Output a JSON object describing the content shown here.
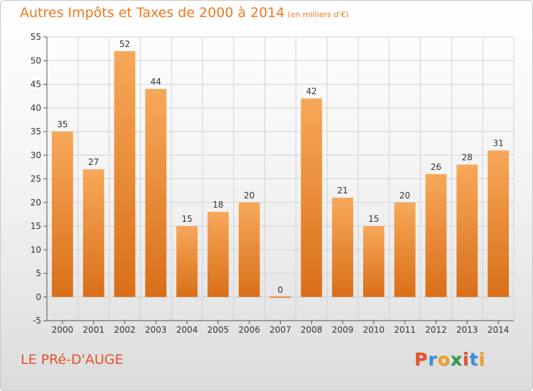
{
  "header": {
    "title": "Autres Impôts et Taxes de 2000 à 2014",
    "subtitle": "(en milliers d'€)"
  },
  "footer": {
    "location": "LE PRé-D'AUGE",
    "logo_letters": [
      "P",
      "r",
      "o",
      "x",
      "i",
      "t",
      "i"
    ]
  },
  "colors": {
    "title": "#f0781e",
    "location": "#e8512a",
    "bar_light": "#f7a85a",
    "bar_dark": "#d96f18",
    "logo": [
      "#e8512a",
      "#3a8fd6",
      "#f0a020",
      "#2e9b4a",
      "#e8512a",
      "#3a8fd6",
      "#f0a020"
    ]
  },
  "chart_data": {
    "type": "bar",
    "title": "Autres Impôts et Taxes de 2000 à 2014",
    "subtitle": "(en milliers d'€)",
    "categories": [
      "2000",
      "2001",
      "2002",
      "2003",
      "2004",
      "2005",
      "2006",
      "2007",
      "2008",
      "2009",
      "2010",
      "2011",
      "2012",
      "2013",
      "2014"
    ],
    "values": [
      35,
      27,
      52,
      44,
      15,
      18,
      20,
      0,
      42,
      21,
      15,
      20,
      26,
      28,
      31
    ],
    "ylim": [
      -5,
      55
    ],
    "yticks": [
      -5,
      0,
      5,
      10,
      15,
      20,
      25,
      30,
      35,
      40,
      45,
      50,
      55
    ],
    "grid": true,
    "data_labels": true
  }
}
